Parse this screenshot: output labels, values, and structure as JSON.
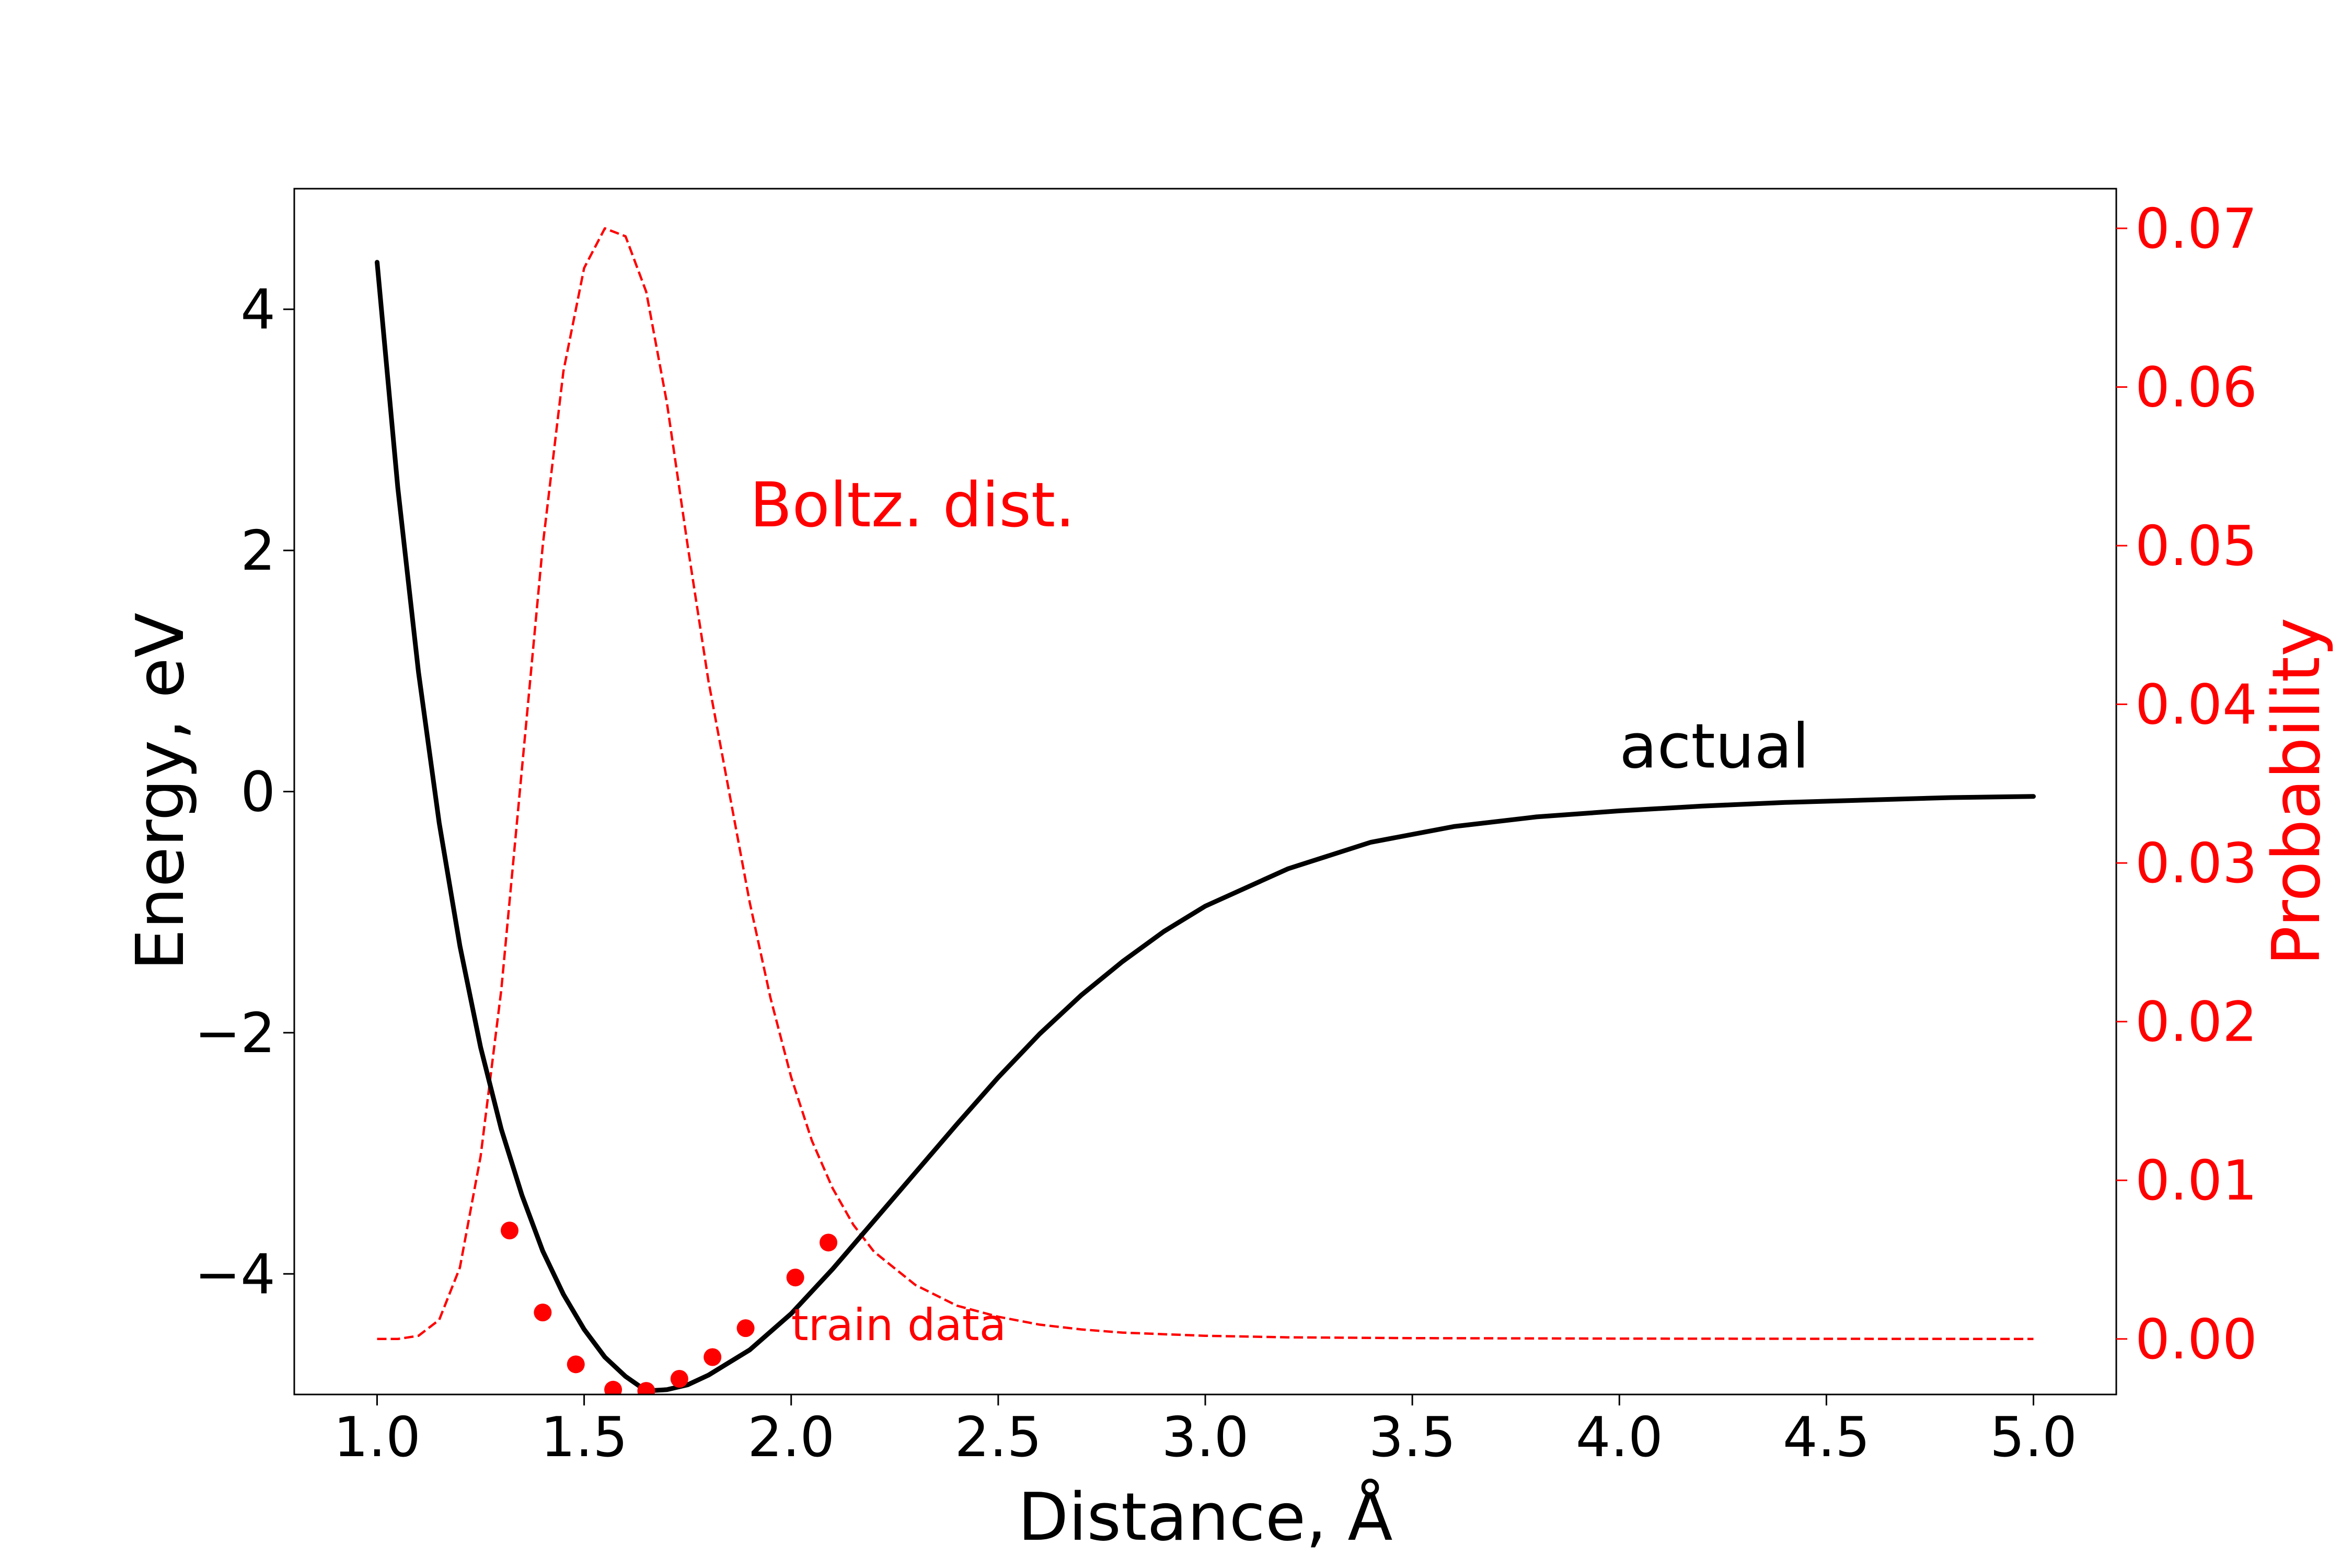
{
  "chart_data": {
    "type": "line",
    "xlabel": "Distance, Å",
    "ylabel_left": "Energy, eV",
    "ylabel_right": "Probability",
    "xlim": [
      0.8,
      5.2
    ],
    "ylim_left": [
      -5.0,
      5.0
    ],
    "ylim_right": [
      -0.0035,
      0.0725
    ],
    "x_ticks": [
      1.0,
      1.5,
      2.0,
      2.5,
      3.0,
      3.5,
      4.0,
      4.5,
      5.0
    ],
    "x_tick_labels": [
      "1.0",
      "1.5",
      "2.0",
      "2.5",
      "3.0",
      "3.5",
      "4.0",
      "4.5",
      "5.0"
    ],
    "y_left_ticks": [
      -4,
      -2,
      0,
      2,
      4
    ],
    "y_left_tick_labels": [
      "−4",
      "−2",
      "0",
      "2",
      "4"
    ],
    "y_right_ticks": [
      0.0,
      0.01,
      0.02,
      0.03,
      0.04,
      0.05,
      0.06,
      0.07
    ],
    "y_right_tick_labels": [
      "0.00",
      "0.01",
      "0.02",
      "0.03",
      "0.04",
      "0.05",
      "0.06",
      "0.07"
    ],
    "grid": false,
    "colors": {
      "actual": "#000000",
      "boltzmann": "#ff0000",
      "train": "#ff0000",
      "right_axis": "#ff0000"
    },
    "series": [
      {
        "name": "actual",
        "axis": "left",
        "style": "solid",
        "x": [
          1.0,
          1.05,
          1.1,
          1.15,
          1.2,
          1.25,
          1.3,
          1.35,
          1.4,
          1.45,
          1.5,
          1.55,
          1.6,
          1.65,
          1.7,
          1.75,
          1.8,
          1.9,
          2.0,
          2.1,
          2.2,
          2.3,
          2.4,
          2.5,
          2.6,
          2.7,
          2.8,
          2.9,
          3.0,
          3.2,
          3.4,
          3.6,
          3.8,
          4.0,
          4.2,
          4.4,
          4.6,
          4.8,
          5.0
        ],
        "y": [
          4.39,
          2.52,
          0.99,
          -0.26,
          -1.28,
          -2.12,
          -2.8,
          -3.35,
          -3.81,
          -4.17,
          -4.46,
          -4.69,
          -4.85,
          -4.97,
          -4.96,
          -4.92,
          -4.84,
          -4.63,
          -4.33,
          -3.96,
          -3.56,
          -3.16,
          -2.76,
          -2.37,
          -2.01,
          -1.69,
          -1.41,
          -1.16,
          -0.95,
          -0.64,
          -0.42,
          -0.29,
          -0.21,
          -0.16,
          -0.12,
          -0.09,
          -0.07,
          -0.05,
          -0.04
        ]
      },
      {
        "name": "Boltz. dist.",
        "axis": "right",
        "style": "dashed",
        "x": [
          1.0,
          1.05,
          1.1,
          1.15,
          1.2,
          1.25,
          1.3,
          1.35,
          1.4,
          1.45,
          1.5,
          1.55,
          1.6,
          1.65,
          1.7,
          1.75,
          1.8,
          1.85,
          1.9,
          1.95,
          2.0,
          2.05,
          2.1,
          2.15,
          2.2,
          2.3,
          2.4,
          2.5,
          2.6,
          2.7,
          2.8,
          2.9,
          3.0,
          3.2,
          3.5,
          4.0,
          4.5,
          5.0
        ],
        "y": [
          0.0,
          0.0,
          0.0002,
          0.0012,
          0.0045,
          0.0115,
          0.022,
          0.036,
          0.05,
          0.061,
          0.0675,
          0.07,
          0.0695,
          0.066,
          0.059,
          0.05,
          0.0415,
          0.0345,
          0.0275,
          0.0215,
          0.0165,
          0.0125,
          0.0095,
          0.0072,
          0.0055,
          0.0034,
          0.0021,
          0.0014,
          0.0009,
          0.0006,
          0.0004,
          0.0003,
          0.0002,
          0.0001,
          5e-05,
          2e-05,
          1e-05,
          0.0
        ]
      },
      {
        "name": "train data",
        "axis": "left",
        "style": "markers",
        "x": [
          1.32,
          1.4,
          1.48,
          1.57,
          1.65,
          1.73,
          1.81,
          1.89,
          2.01,
          2.09
        ],
        "y": [
          -3.64,
          -4.32,
          -4.75,
          -4.96,
          -4.97,
          -4.87,
          -4.69,
          -4.45,
          -4.03,
          -3.74
        ]
      }
    ],
    "annotations": [
      {
        "text": "Boltz. dist.",
        "x": 1.9,
        "y": 2.2
      },
      {
        "text": "actual",
        "x": 4.0,
        "y": 0.2
      },
      {
        "text": "train data",
        "x": 2.0,
        "y": -4.55
      }
    ]
  }
}
